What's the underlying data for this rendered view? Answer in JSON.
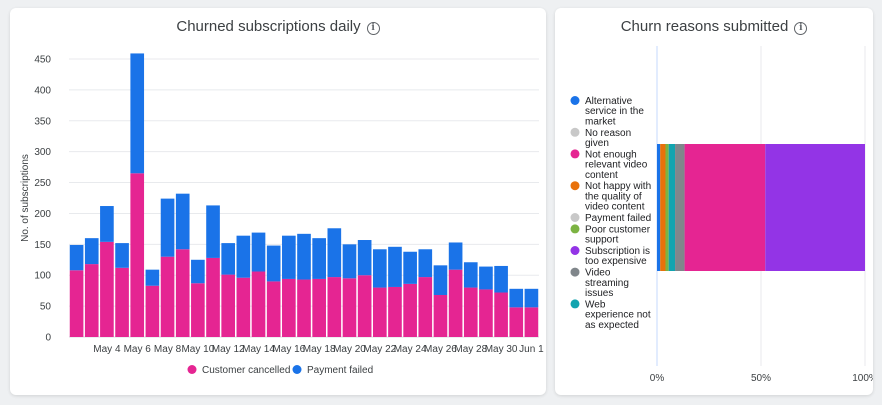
{
  "left_card": {
    "title": "Churned subscriptions daily",
    "info_icon": "info-icon"
  },
  "right_card": {
    "title": "Churn reasons submitted",
    "info_icon": "info-icon"
  },
  "chart_data": [
    {
      "type": "bar",
      "stacked": true,
      "title": "Churned subscriptions daily",
      "ylabel": "No. of subscriptions",
      "xlabel": "",
      "ylim": [
        0,
        450
      ],
      "yticks": [
        0,
        50,
        100,
        150,
        200,
        250,
        300,
        350,
        400,
        450
      ],
      "grid": true,
      "legend_position": "bottom",
      "x_tick_labels": [
        "May 4",
        "May 6",
        "May 8",
        "May 10",
        "May 12",
        "May 14",
        "May 16",
        "May 18",
        "May 20",
        "May 22",
        "May 24",
        "May 26",
        "May 28",
        "May 30",
        "Jun 1"
      ],
      "categories": [
        "May 2",
        "May 3",
        "May 4",
        "May 5",
        "May 6",
        "May 7",
        "May 8",
        "May 9",
        "May 10",
        "May 11",
        "May 12",
        "May 13",
        "May 14",
        "May 15",
        "May 16",
        "May 17",
        "May 18",
        "May 19",
        "May 20",
        "May 21",
        "May 22",
        "May 23",
        "May 24",
        "May 25",
        "May 26",
        "May 27",
        "May 28",
        "May 29",
        "May 30",
        "May 31",
        "Jun 1"
      ],
      "series": [
        {
          "name": "Customer cancelled",
          "color": "#e52592",
          "values": [
            108,
            118,
            154,
            112,
            265,
            83,
            130,
            142,
            87,
            128,
            101,
            96,
            106,
            90,
            94,
            93,
            94,
            97,
            95,
            100,
            80,
            81,
            86,
            97,
            68,
            109,
            80,
            77,
            72,
            48,
            48
          ]
        },
        {
          "name": "Payment failed",
          "color": "#1a73e8",
          "values": [
            41,
            42,
            58,
            40,
            194,
            26,
            94,
            90,
            38,
            85,
            51,
            68,
            63,
            58,
            70,
            74,
            66,
            79,
            55,
            57,
            62,
            65,
            52,
            45,
            48,
            44,
            41,
            37,
            43,
            30,
            30
          ]
        }
      ]
    },
    {
      "type": "bar",
      "orientation": "horizontal",
      "stacked": true,
      "normalized": true,
      "title": "Churn reasons submitted",
      "xlim": [
        0,
        100
      ],
      "x_tick_labels": [
        "0%",
        "50%",
        "100%"
      ],
      "legend_position": "left",
      "series": [
        {
          "name": "Alternative service in the market",
          "lines": [
            "Alternative",
            "service in the",
            "market"
          ],
          "color": "#1a73e8",
          "value": 1.5,
          "dimmed": false
        },
        {
          "name": "No reason given",
          "lines": [
            "No reason",
            "given"
          ],
          "color": "#c8c8c8",
          "value": 0,
          "dimmed": true
        },
        {
          "name": "Not enough relevant video content",
          "lines": [
            "Not enough",
            "relevant video",
            "content"
          ],
          "color": "#e52592",
          "value": 38,
          "dimmed": false
        },
        {
          "name": "Not happy with the quality of video content",
          "lines": [
            "Not happy with",
            "the quality of",
            "video content"
          ],
          "color": "#e8710a",
          "value": 2.5,
          "dimmed": false
        },
        {
          "name": "Payment failed",
          "lines": [
            "Payment failed"
          ],
          "color": "#c8c8c8",
          "value": 0,
          "dimmed": true
        },
        {
          "name": "Poor customer support",
          "lines": [
            "Poor customer",
            "support"
          ],
          "color": "#7cb342",
          "value": 1.5,
          "dimmed": false
        },
        {
          "name": "Subscription is too expensive",
          "lines": [
            "Subscription is",
            "too expensive"
          ],
          "color": "#9334e6",
          "value": 47,
          "dimmed": false
        },
        {
          "name": "Video streaming issues",
          "lines": [
            "Video",
            "streaming",
            "issues"
          ],
          "color": "#80868b",
          "value": 4.5,
          "dimmed": false
        },
        {
          "name": "Web experience not as expected",
          "lines": [
            "Web",
            "experience not",
            "as expected"
          ],
          "color": "#12a4af",
          "value": 3,
          "dimmed": false
        }
      ],
      "segment_order": [
        "Alternative service in the market",
        "Not happy with the quality of video content",
        "Poor customer support",
        "Web experience not as expected",
        "Video streaming issues",
        "Not enough relevant video content",
        "Subscription is too expensive"
      ]
    }
  ]
}
